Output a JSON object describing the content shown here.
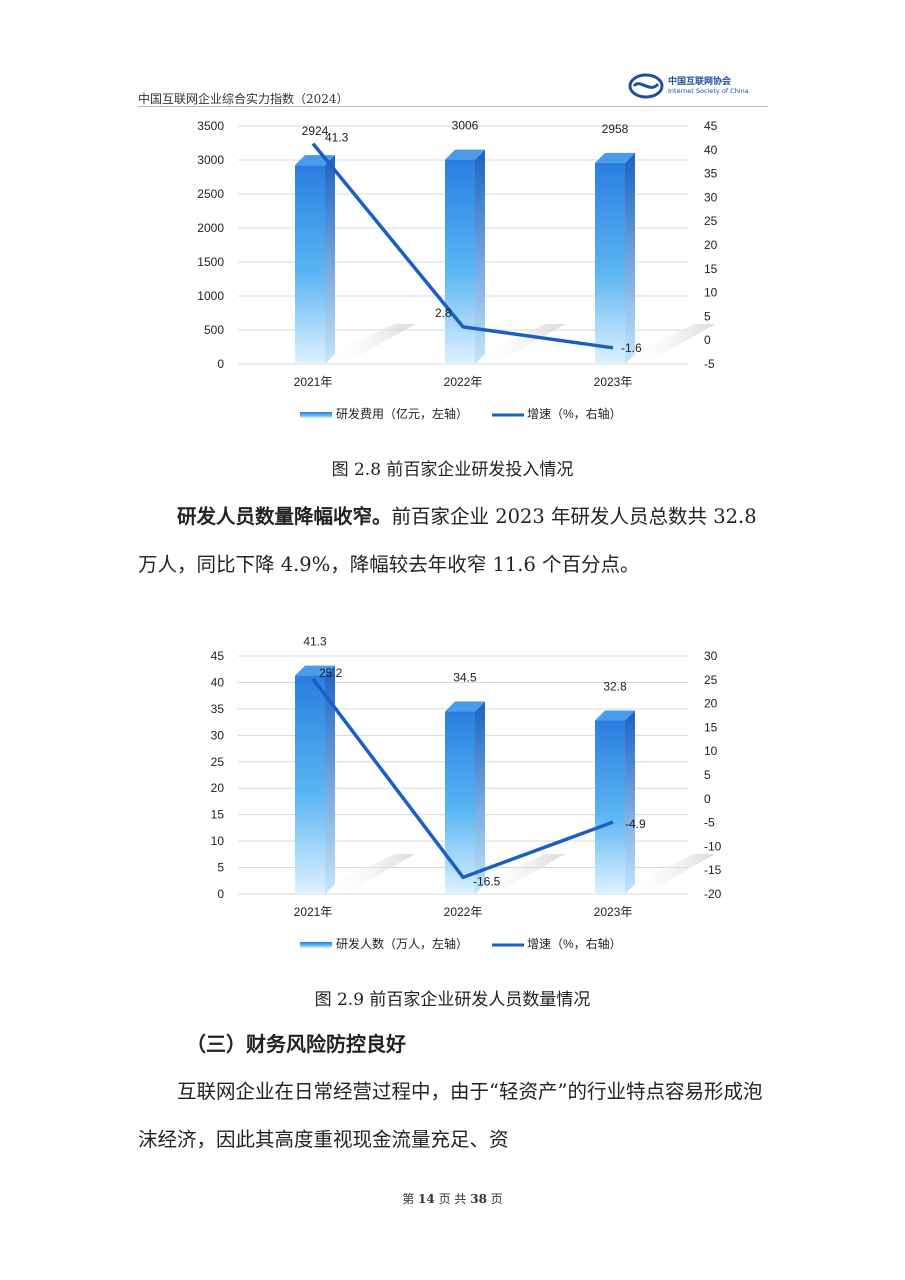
{
  "header": {
    "doc_title": "中国互联网企业综合实力指数（2024）",
    "logo_cn": "中国互联网协会",
    "logo_en": "Internet Society of China"
  },
  "figure1": {
    "caption": "图 2.8   前百家企业研发投入情况",
    "legend_bar": "研发费用（亿元，左轴）",
    "legend_line": "增速（%，右轴）"
  },
  "paragraph1": {
    "lead": "研发人员数量降幅收窄。",
    "text": "前百家企业 2023 年研发人员总数共 32.8 万人，同比下降 4.9%，降幅较去年收窄 11.6 个百分点。"
  },
  "figure2": {
    "caption": "图 2.9   前百家企业研发人员数量情况",
    "legend_bar": "研发人数（万人，左轴）",
    "legend_line": "增速（%，右轴）"
  },
  "section": {
    "title": "（三）财务风险防控良好"
  },
  "paragraph2": {
    "text": "互联网企业在日常经营过程中，由于“轻资产”的行业特点容易形成泡沫经济，因此其高度重视现金流量充足、资"
  },
  "footer": {
    "prefix": "第",
    "page": "14",
    "mid": "页  共",
    "total": "38",
    "suffix": "页"
  },
  "colors": {
    "bar_top": "#2a7de0",
    "bar_bottom": "#dff2ff",
    "line": "#1a5fc4"
  },
  "chart_data": [
    {
      "type": "bar",
      "categories": [
        "2021年",
        "2022年",
        "2023年"
      ],
      "series": [
        {
          "name": "研发费用（亿元，左轴）",
          "type": "bar",
          "axis": "left",
          "values": [
            2924,
            3006,
            2958
          ]
        },
        {
          "name": "增速（%，右轴）",
          "type": "line",
          "axis": "right",
          "values": [
            41.3,
            2.8,
            -1.6
          ]
        }
      ],
      "y_left": {
        "min": 0,
        "max": 3500,
        "step": 500
      },
      "y_right": {
        "min": -5,
        "max": 45,
        "step": 5
      },
      "grid": true,
      "legend": "bottom"
    },
    {
      "type": "bar",
      "categories": [
        "2021年",
        "2022年",
        "2023年"
      ],
      "series": [
        {
          "name": "研发人数（万人，左轴）",
          "type": "bar",
          "axis": "left",
          "values": [
            41.3,
            34.5,
            32.8
          ]
        },
        {
          "name": "增速（%，右轴）",
          "type": "line",
          "axis": "right",
          "values": [
            25.2,
            -16.5,
            -4.9
          ]
        }
      ],
      "y_left": {
        "min": 0,
        "max": 45,
        "step": 5
      },
      "y_right": {
        "min": -20,
        "max": 30,
        "step": 5
      },
      "grid": true,
      "legend": "bottom"
    }
  ]
}
